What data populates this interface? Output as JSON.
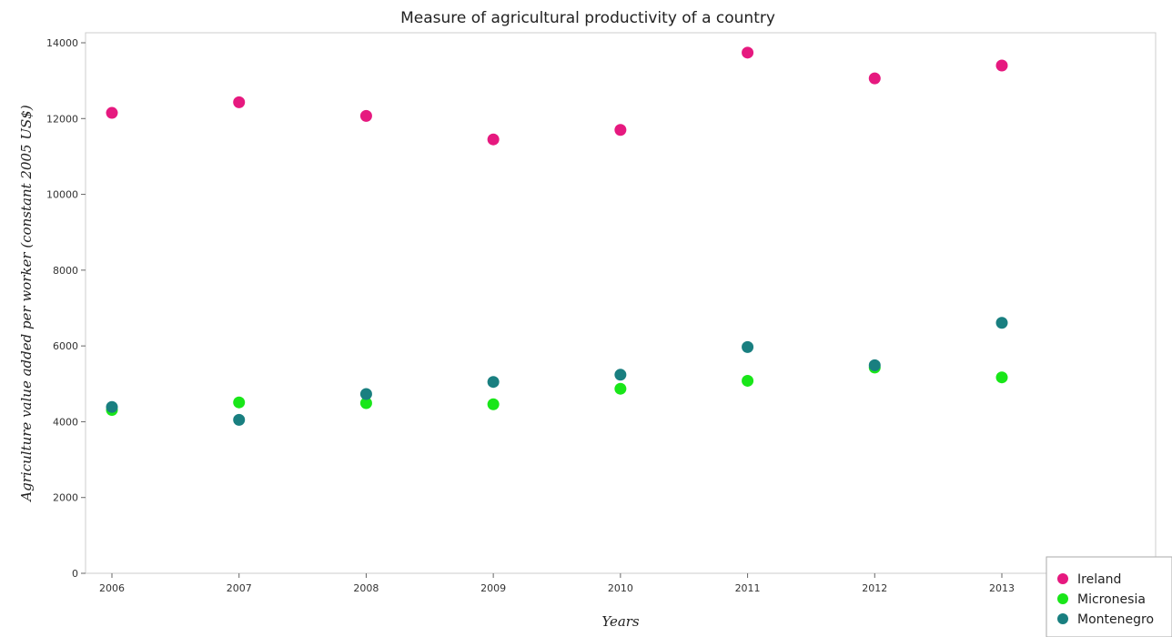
{
  "chart_data": {
    "type": "scatter",
    "title": "Measure of agricultural productivity of a country",
    "xlabel": "Years",
    "ylabel": "Agriculture value added per worker (constant 2005 US$)",
    "x": [
      "2006",
      "2007",
      "2008",
      "2009",
      "2010",
      "2011",
      "2012",
      "2013"
    ],
    "ylim": [
      0,
      14000
    ],
    "yticks": [
      "0",
      "2000",
      "4000",
      "6000",
      "8000",
      "10000",
      "12000",
      "14000"
    ],
    "grid": false,
    "legend_position": "bottom-right",
    "series": [
      {
        "name": "Ireland",
        "color": "#e6197f",
        "values": [
          12150,
          12430,
          12070,
          11450,
          11700,
          13740,
          13060,
          13400
        ]
      },
      {
        "name": "Micronesia",
        "color": "#19e619",
        "values": [
          4310,
          4510,
          4490,
          4460,
          4870,
          5080,
          5430,
          5170
        ]
      },
      {
        "name": "Montenegro",
        "color": "#197f80",
        "values": [
          4390,
          4050,
          4730,
          5050,
          5240,
          5970,
          5490,
          6610
        ]
      }
    ]
  }
}
